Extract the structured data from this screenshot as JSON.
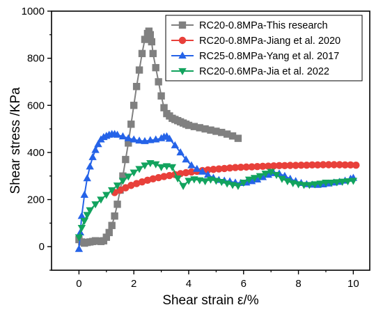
{
  "chart_data": {
    "type": "scatter",
    "xlabel": "Shear strain ε/%",
    "ylabel": "Shear stress /KPa",
    "xlim": [
      -1,
      10.6
    ],
    "ylim": [
      -100,
      1000
    ],
    "xticks": [
      0,
      2,
      4,
      6,
      8,
      10
    ],
    "yticks": [
      0,
      200,
      400,
      600,
      800,
      1000
    ],
    "xtick_labels": [
      "0",
      "2",
      "4",
      "6",
      "8",
      "10"
    ],
    "ytick_labels": [
      "0",
      "200",
      "400",
      "600",
      "800",
      "1000"
    ],
    "legend_position": "top-right",
    "grid": false,
    "series": [
      {
        "name": "RC20-0.8MPa-This research",
        "color": "#808080",
        "marker": "square",
        "x": [
          0.0,
          0.1,
          0.2,
          0.3,
          0.4,
          0.5,
          0.6,
          0.7,
          0.8,
          0.9,
          1.0,
          1.1,
          1.2,
          1.3,
          1.4,
          1.5,
          1.6,
          1.7,
          1.8,
          1.9,
          2.0,
          2.1,
          2.2,
          2.3,
          2.4,
          2.5,
          2.55,
          2.6,
          2.65,
          2.7,
          2.8,
          2.9,
          3.0,
          3.1,
          3.2,
          3.3,
          3.4,
          3.5,
          3.6,
          3.7,
          3.8,
          3.9,
          4.0,
          4.2,
          4.4,
          4.6,
          4.8,
          5.0,
          5.2,
          5.4,
          5.6,
          5.8
        ],
        "y": [
          30,
          20,
          15,
          18,
          20,
          22,
          25,
          24,
          22,
          25,
          40,
          60,
          90,
          130,
          180,
          240,
          300,
          370,
          440,
          520,
          600,
          680,
          750,
          820,
          880,
          905,
          915,
          900,
          870,
          820,
          760,
          700,
          640,
          590,
          565,
          555,
          545,
          540,
          535,
          530,
          525,
          520,
          515,
          510,
          505,
          500,
          495,
          490,
          485,
          478,
          470,
          460
        ]
      },
      {
        "name": "RC20-0.8MPa-Jiang et al. 2020",
        "color": "#e8403a",
        "marker": "circle",
        "x": [
          1.3,
          1.5,
          1.7,
          1.9,
          2.1,
          2.3,
          2.5,
          2.7,
          2.9,
          3.1,
          3.3,
          3.5,
          3.7,
          3.9,
          4.1,
          4.3,
          4.5,
          4.7,
          4.9,
          5.1,
          5.3,
          5.5,
          5.7,
          5.9,
          6.1,
          6.3,
          6.5,
          6.7,
          6.9,
          7.1,
          7.3,
          7.5,
          7.7,
          7.9,
          8.1,
          8.3,
          8.5,
          8.7,
          8.9,
          9.1,
          9.3,
          9.5,
          9.7,
          9.9,
          10.1
        ],
        "y": [
          230,
          240,
          250,
          260,
          268,
          275,
          282,
          288,
          293,
          298,
          302,
          306,
          310,
          314,
          317,
          320,
          323,
          326,
          328,
          330,
          332,
          334,
          336,
          337,
          338,
          339,
          340,
          341,
          342,
          343,
          344,
          344,
          345,
          345,
          346,
          346,
          347,
          347,
          348,
          348,
          348,
          348,
          347,
          347,
          346
        ]
      },
      {
        "name": "RC25-0.8MPa-Yang et al. 2017",
        "color": "#2563e8",
        "marker": "triangle-up",
        "x": [
          0.0,
          0.05,
          0.1,
          0.2,
          0.3,
          0.4,
          0.5,
          0.6,
          0.7,
          0.8,
          0.9,
          1.0,
          1.1,
          1.2,
          1.3,
          1.4,
          1.6,
          1.8,
          2.0,
          2.2,
          2.4,
          2.6,
          2.8,
          3.0,
          3.1,
          3.2,
          3.3,
          3.5,
          3.7,
          3.9,
          4.1,
          4.3,
          4.5,
          4.7,
          4.9,
          5.1,
          5.3,
          5.5,
          5.7,
          5.9,
          6.1,
          6.3,
          6.5,
          6.7,
          6.9,
          7.1,
          7.3,
          7.5,
          7.7,
          7.9,
          8.1,
          8.3,
          8.5,
          8.7,
          8.9,
          9.1,
          9.3,
          9.5,
          9.7,
          9.9,
          10.0
        ],
        "y": [
          -10,
          60,
          130,
          220,
          290,
          340,
          380,
          410,
          435,
          455,
          465,
          470,
          475,
          478,
          478,
          475,
          468,
          460,
          455,
          450,
          448,
          452,
          455,
          460,
          466,
          468,
          458,
          430,
          400,
          370,
          345,
          330,
          318,
          305,
          292,
          283,
          280,
          277,
          272,
          270,
          272,
          278,
          285,
          295,
          305,
          312,
          310,
          300,
          288,
          278,
          270,
          265,
          263,
          262,
          264,
          268,
          272,
          275,
          280,
          288,
          292
        ]
      },
      {
        "name": "RC20-0.6MPa-Jia et al. 2022",
        "color": "#12a35e",
        "marker": "triangle-down",
        "x": [
          0.0,
          0.1,
          0.2,
          0.3,
          0.4,
          0.6,
          0.8,
          1.0,
          1.2,
          1.4,
          1.6,
          1.8,
          2.0,
          2.2,
          2.4,
          2.6,
          2.8,
          3.0,
          3.2,
          3.4,
          3.6,
          3.8,
          4.0,
          4.2,
          4.4,
          4.6,
          4.8,
          5.0,
          5.2,
          5.4,
          5.6,
          5.8,
          6.0,
          6.2,
          6.4,
          6.6,
          6.8,
          7.0,
          7.2,
          7.4,
          7.6,
          7.8,
          8.0,
          8.2,
          8.4,
          8.6,
          8.8,
          9.0,
          9.2,
          9.4,
          9.6,
          9.8,
          10.0
        ],
        "y": [
          40,
          80,
          110,
          135,
          155,
          180,
          200,
          220,
          240,
          260,
          280,
          298,
          315,
          330,
          345,
          355,
          350,
          338,
          342,
          338,
          290,
          258,
          280,
          286,
          282,
          278,
          285,
          280,
          275,
          268,
          262,
          258,
          272,
          285,
          292,
          300,
          310,
          318,
          305,
          288,
          278,
          270,
          265,
          262,
          262,
          265,
          268,
          272,
          272,
          274,
          276,
          278,
          280
        ]
      }
    ]
  }
}
